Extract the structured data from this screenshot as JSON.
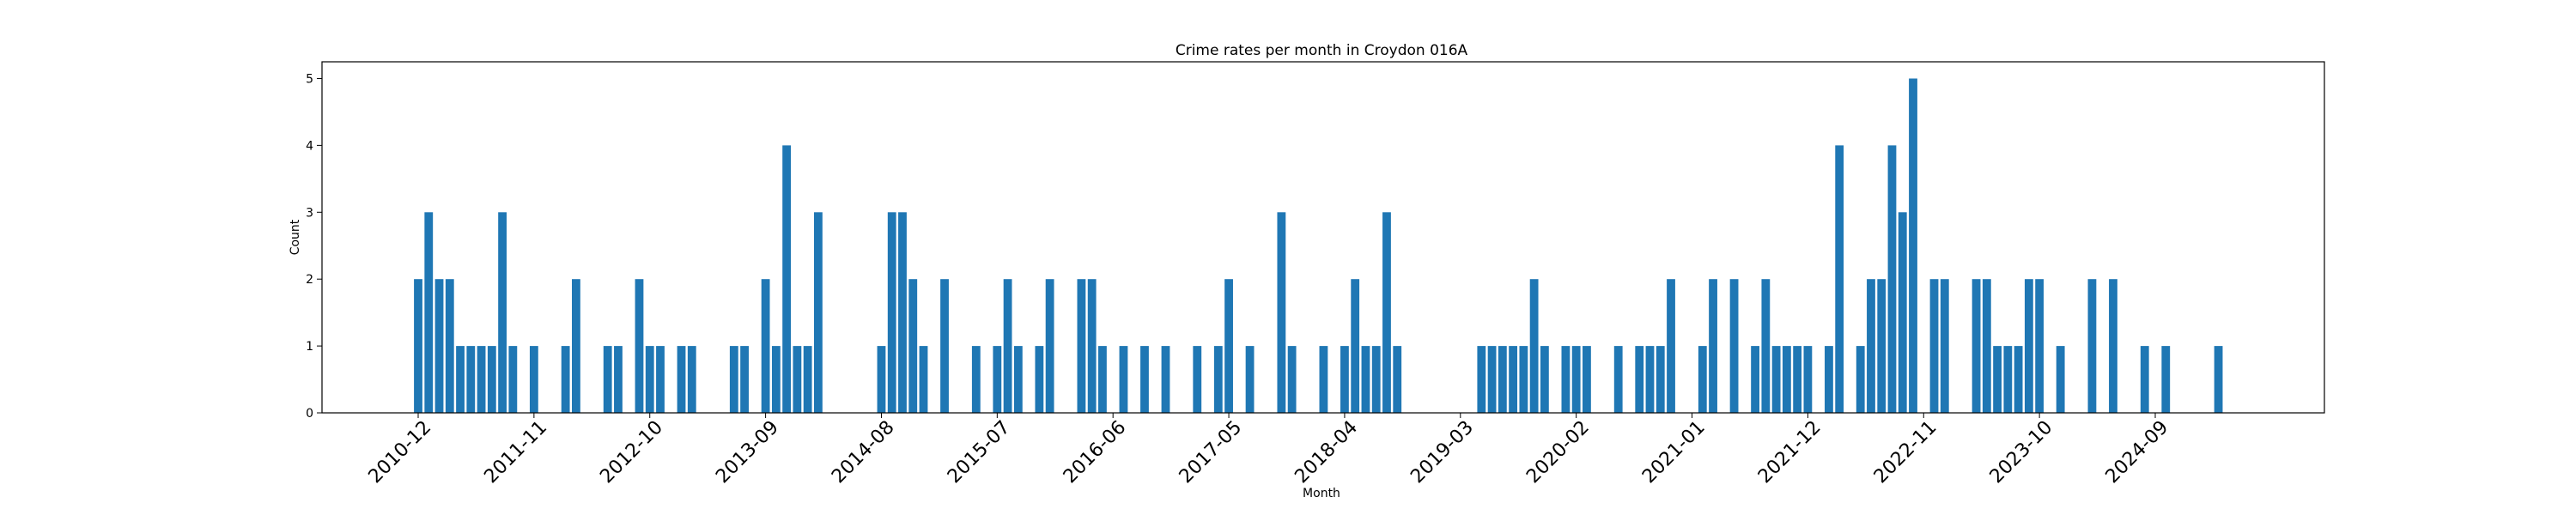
{
  "chart_data": {
    "type": "bar",
    "title": "Crime rates per month in Croydon 016A",
    "xlabel": "Month",
    "ylabel": "Count",
    "ylim": [
      0,
      5.25
    ],
    "yticks": [
      0,
      1,
      2,
      3,
      4,
      5
    ],
    "xticks": [
      "2010-12",
      "2011-11",
      "2012-10",
      "2013-09",
      "2014-08",
      "2015-07",
      "2016-06",
      "2017-05",
      "2018-04",
      "2019-03",
      "2020-02",
      "2021-01",
      "2021-12",
      "2022-11",
      "2023-10",
      "2024-09"
    ],
    "bar_color": "#1f77b4",
    "grid": false,
    "bars": [
      {
        "month": "2010-12",
        "value": 2
      },
      {
        "month": "2011-01",
        "value": 3
      },
      {
        "month": "2011-02",
        "value": 2
      },
      {
        "month": "2011-03",
        "value": 2
      },
      {
        "month": "2011-04",
        "value": 1
      },
      {
        "month": "2011-05",
        "value": 1
      },
      {
        "month": "2011-06",
        "value": 1
      },
      {
        "month": "2011-07",
        "value": 1
      },
      {
        "month": "2011-08",
        "value": 3
      },
      {
        "month": "2011-09",
        "value": 1
      },
      {
        "month": "2011-11",
        "value": 1
      },
      {
        "month": "2012-02",
        "value": 1
      },
      {
        "month": "2012-03",
        "value": 2
      },
      {
        "month": "2012-06",
        "value": 1
      },
      {
        "month": "2012-07",
        "value": 1
      },
      {
        "month": "2012-09",
        "value": 2
      },
      {
        "month": "2012-10",
        "value": 1
      },
      {
        "month": "2012-11",
        "value": 1
      },
      {
        "month": "2013-01",
        "value": 1
      },
      {
        "month": "2013-02",
        "value": 1
      },
      {
        "month": "2013-06",
        "value": 1
      },
      {
        "month": "2013-07",
        "value": 1
      },
      {
        "month": "2013-09",
        "value": 2
      },
      {
        "month": "2013-10",
        "value": 1
      },
      {
        "month": "2013-11",
        "value": 4
      },
      {
        "month": "2013-12",
        "value": 1
      },
      {
        "month": "2014-01",
        "value": 1
      },
      {
        "month": "2014-02",
        "value": 3
      },
      {
        "month": "2014-08",
        "value": 1
      },
      {
        "month": "2014-09",
        "value": 3
      },
      {
        "month": "2014-10",
        "value": 3
      },
      {
        "month": "2014-11",
        "value": 2
      },
      {
        "month": "2014-12",
        "value": 1
      },
      {
        "month": "2015-02",
        "value": 2
      },
      {
        "month": "2015-05",
        "value": 1
      },
      {
        "month": "2015-07",
        "value": 1
      },
      {
        "month": "2015-08",
        "value": 2
      },
      {
        "month": "2015-09",
        "value": 1
      },
      {
        "month": "2015-11",
        "value": 1
      },
      {
        "month": "2015-12",
        "value": 2
      },
      {
        "month": "2016-03",
        "value": 2
      },
      {
        "month": "2016-04",
        "value": 2
      },
      {
        "month": "2016-05",
        "value": 1
      },
      {
        "month": "2016-07",
        "value": 1
      },
      {
        "month": "2016-09",
        "value": 1
      },
      {
        "month": "2016-11",
        "value": 1
      },
      {
        "month": "2017-02",
        "value": 1
      },
      {
        "month": "2017-04",
        "value": 1
      },
      {
        "month": "2017-05",
        "value": 2
      },
      {
        "month": "2017-07",
        "value": 1
      },
      {
        "month": "2017-10",
        "value": 3
      },
      {
        "month": "2017-11",
        "value": 1
      },
      {
        "month": "2018-02",
        "value": 1
      },
      {
        "month": "2018-04",
        "value": 1
      },
      {
        "month": "2018-05",
        "value": 2
      },
      {
        "month": "2018-06",
        "value": 1
      },
      {
        "month": "2018-07",
        "value": 1
      },
      {
        "month": "2018-08",
        "value": 3
      },
      {
        "month": "2018-09",
        "value": 1
      },
      {
        "month": "2019-05",
        "value": 1
      },
      {
        "month": "2019-06",
        "value": 1
      },
      {
        "month": "2019-07",
        "value": 1
      },
      {
        "month": "2019-08",
        "value": 1
      },
      {
        "month": "2019-09",
        "value": 1
      },
      {
        "month": "2019-10",
        "value": 2
      },
      {
        "month": "2019-11",
        "value": 1
      },
      {
        "month": "2020-01",
        "value": 1
      },
      {
        "month": "2020-02",
        "value": 1
      },
      {
        "month": "2020-03",
        "value": 1
      },
      {
        "month": "2020-06",
        "value": 1
      },
      {
        "month": "2020-08",
        "value": 1
      },
      {
        "month": "2020-09",
        "value": 1
      },
      {
        "month": "2020-10",
        "value": 1
      },
      {
        "month": "2020-11",
        "value": 2
      },
      {
        "month": "2021-02",
        "value": 1
      },
      {
        "month": "2021-03",
        "value": 2
      },
      {
        "month": "2021-05",
        "value": 2
      },
      {
        "month": "2021-07",
        "value": 1
      },
      {
        "month": "2021-08",
        "value": 2
      },
      {
        "month": "2021-09",
        "value": 1
      },
      {
        "month": "2021-10",
        "value": 1
      },
      {
        "month": "2021-11",
        "value": 1
      },
      {
        "month": "2021-12",
        "value": 1
      },
      {
        "month": "2022-02",
        "value": 1
      },
      {
        "month": "2022-03",
        "value": 4
      },
      {
        "month": "2022-05",
        "value": 1
      },
      {
        "month": "2022-06",
        "value": 2
      },
      {
        "month": "2022-07",
        "value": 2
      },
      {
        "month": "2022-08",
        "value": 4
      },
      {
        "month": "2022-09",
        "value": 3
      },
      {
        "month": "2022-10",
        "value": 5
      },
      {
        "month": "2022-12",
        "value": 2
      },
      {
        "month": "2023-01",
        "value": 2
      },
      {
        "month": "2023-04",
        "value": 2
      },
      {
        "month": "2023-05",
        "value": 2
      },
      {
        "month": "2023-06",
        "value": 1
      },
      {
        "month": "2023-07",
        "value": 1
      },
      {
        "month": "2023-08",
        "value": 1
      },
      {
        "month": "2023-09",
        "value": 2
      },
      {
        "month": "2023-10",
        "value": 2
      },
      {
        "month": "2023-12",
        "value": 1
      },
      {
        "month": "2024-03",
        "value": 2
      },
      {
        "month": "2024-05",
        "value": 2
      },
      {
        "month": "2024-08",
        "value": 1
      },
      {
        "month": "2024-10",
        "value": 1
      },
      {
        "month": "2025-03",
        "value": 1
      }
    ]
  }
}
